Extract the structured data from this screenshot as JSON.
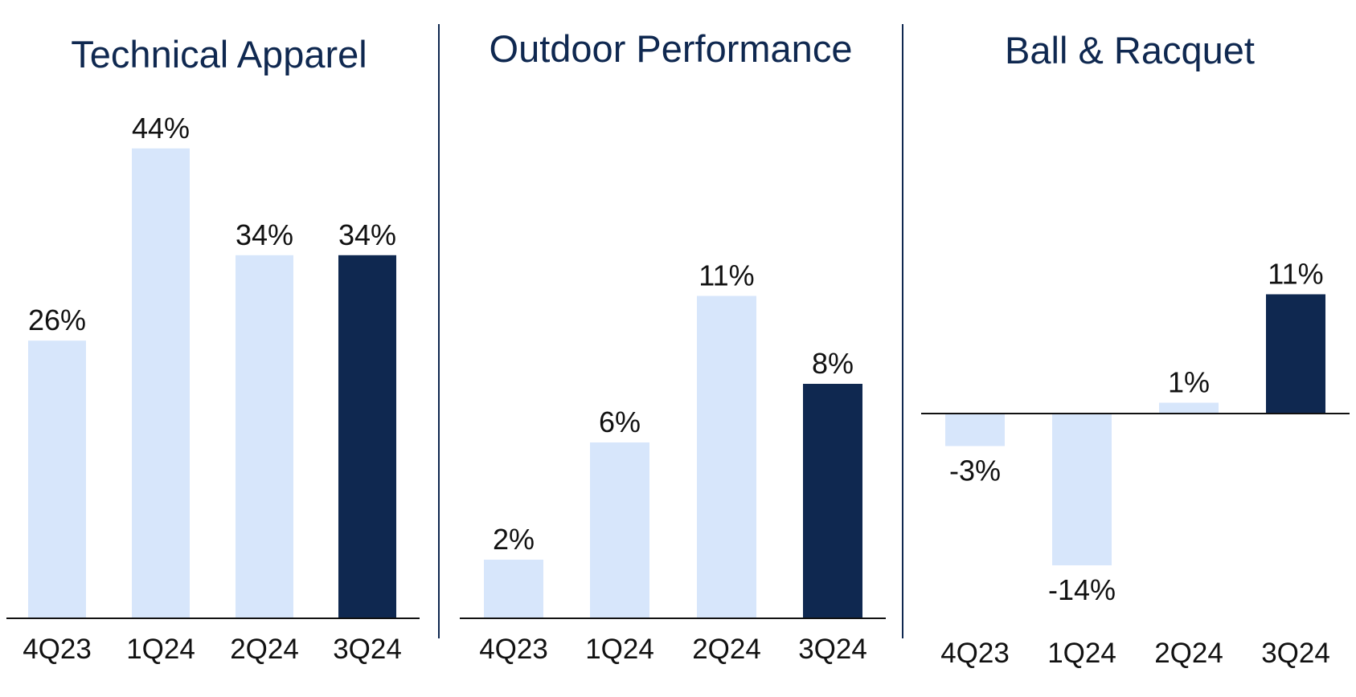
{
  "colors": {
    "light_bar": "#d7e6fb",
    "dark_bar": "#0f2850",
    "title": "#0f2850",
    "axis": "#111111",
    "text": "#111111"
  },
  "chart_data": [
    {
      "type": "bar",
      "title": "Technical Apparel",
      "categories": [
        "4Q23",
        "1Q24",
        "2Q24",
        "3Q24"
      ],
      "values": [
        26,
        44,
        34,
        34
      ],
      "labels": [
        "26%",
        "44%",
        "34%",
        "34%"
      ],
      "highlight_index": 3,
      "ylim": [
        0,
        44
      ]
    },
    {
      "type": "bar",
      "title": "Outdoor Performance",
      "categories": [
        "4Q23",
        "1Q24",
        "2Q24",
        "3Q24"
      ],
      "values": [
        2,
        6,
        11,
        8
      ],
      "labels": [
        "2%",
        "6%",
        "11%",
        "8%"
      ],
      "highlight_index": 3,
      "ylim": [
        0,
        11
      ]
    },
    {
      "type": "bar",
      "title": "Ball & Racquet",
      "categories": [
        "4Q23",
        "1Q24",
        "2Q24",
        "3Q24"
      ],
      "values": [
        -3,
        -14,
        1,
        11
      ],
      "labels": [
        "-3%",
        "-14%",
        "1%",
        "11%"
      ],
      "highlight_index": 3,
      "ylim": [
        -14,
        11
      ]
    }
  ]
}
